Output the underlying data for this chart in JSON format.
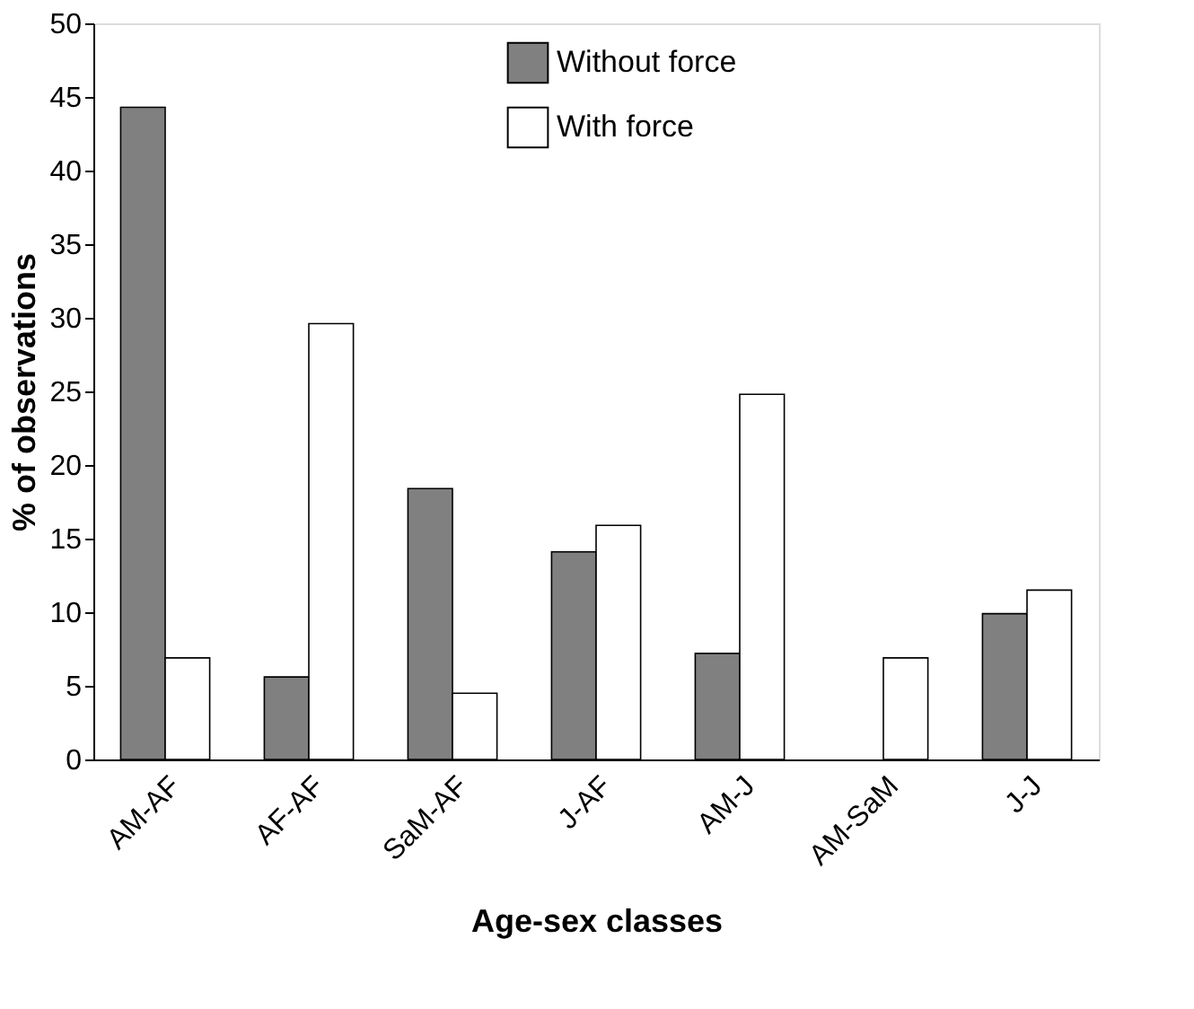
{
  "chart_data": {
    "type": "bar",
    "xlabel": "Age-sex classes",
    "ylabel": "% of observations",
    "categories": [
      "AM-AF",
      "AF-AF",
      "SaM-AF",
      "J-AF",
      "AM-J",
      "AM-SaM",
      "J-J"
    ],
    "series": [
      {
        "name": "Without force",
        "color": "#808080",
        "values": [
          44.3,
          5.6,
          18.4,
          14.1,
          7.2,
          0,
          9.9
        ]
      },
      {
        "name": "With force",
        "color": "#ffffff",
        "values": [
          6.9,
          29.6,
          4.5,
          15.9,
          24.8,
          6.9,
          11.5
        ]
      }
    ],
    "ylim": [
      0,
      50
    ],
    "yticks": [
      0,
      5,
      10,
      15,
      20,
      25,
      30,
      35,
      40,
      45,
      50
    ],
    "grid": false,
    "legend": "top"
  }
}
